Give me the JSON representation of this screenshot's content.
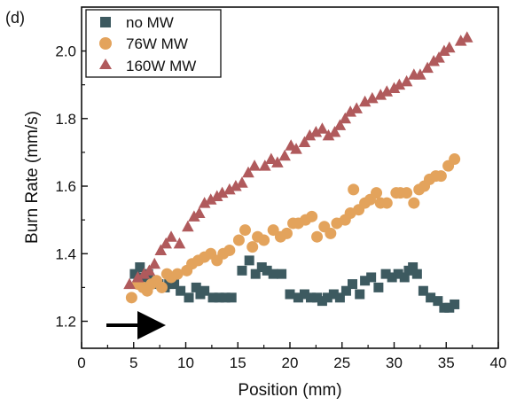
{
  "chart_data": {
    "type": "scatter",
    "panel_label": "(d)",
    "xlabel": "Position (mm)",
    "ylabel": "Burn Rate (mm/s)",
    "xlim": [
      0,
      40
    ],
    "ylim": [
      1.12,
      2.13
    ],
    "x_ticks": [
      0,
      5,
      10,
      15,
      20,
      25,
      30,
      35,
      40
    ],
    "x_tick_labels": [
      "0",
      "5",
      "10",
      "15",
      "20",
      "25",
      "30",
      "35",
      "40"
    ],
    "y_ticks": [
      1.2,
      1.4,
      1.6,
      1.8,
      2.0
    ],
    "y_tick_labels": [
      "1.2",
      "1.4",
      "1.6",
      "1.8",
      "2.0"
    ],
    "legend_position": "top-left",
    "annotation": "arrow pointing right (flame propagation direction)",
    "series": [
      {
        "name": "no MW",
        "marker": "square",
        "color": "#3d5a60",
        "points": [
          [
            5.1,
            1.34
          ],
          [
            5.6,
            1.36
          ],
          [
            6.0,
            1.33
          ],
          [
            6.4,
            1.34
          ],
          [
            6.9,
            1.32
          ],
          [
            7.4,
            1.31
          ],
          [
            8.0,
            1.3
          ],
          [
            8.4,
            1.31
          ],
          [
            8.9,
            1.31
          ],
          [
            9.5,
            1.29
          ],
          [
            10.3,
            1.27
          ],
          [
            11.0,
            1.3
          ],
          [
            11.4,
            1.28
          ],
          [
            11.8,
            1.29
          ],
          [
            12.6,
            1.27
          ],
          [
            13.2,
            1.27
          ],
          [
            13.8,
            1.27
          ],
          [
            14.4,
            1.27
          ],
          [
            15.4,
            1.35
          ],
          [
            16.1,
            1.38
          ],
          [
            16.7,
            1.34
          ],
          [
            17.3,
            1.36
          ],
          [
            17.8,
            1.35
          ],
          [
            18.4,
            1.34
          ],
          [
            19.2,
            1.34
          ],
          [
            20.0,
            1.28
          ],
          [
            20.8,
            1.27
          ],
          [
            21.4,
            1.28
          ],
          [
            22.0,
            1.27
          ],
          [
            22.6,
            1.27
          ],
          [
            23.1,
            1.26
          ],
          [
            23.6,
            1.27
          ],
          [
            24.2,
            1.28
          ],
          [
            24.8,
            1.27
          ],
          [
            25.4,
            1.29
          ],
          [
            26.0,
            1.31
          ],
          [
            26.7,
            1.28
          ],
          [
            27.2,
            1.32
          ],
          [
            27.8,
            1.33
          ],
          [
            28.5,
            1.3
          ],
          [
            29.2,
            1.34
          ],
          [
            29.8,
            1.33
          ],
          [
            30.4,
            1.34
          ],
          [
            31.0,
            1.33
          ],
          [
            31.4,
            1.35
          ],
          [
            31.8,
            1.36
          ],
          [
            32.2,
            1.34
          ],
          [
            32.8,
            1.29
          ],
          [
            33.5,
            1.27
          ],
          [
            34.2,
            1.26
          ],
          [
            34.8,
            1.24
          ],
          [
            35.3,
            1.24
          ],
          [
            35.8,
            1.25
          ]
        ]
      },
      {
        "name": "76W MW",
        "marker": "circle",
        "color": "#e3a35c",
        "points": [
          [
            4.8,
            1.27
          ],
          [
            5.4,
            1.31
          ],
          [
            5.9,
            1.3
          ],
          [
            6.3,
            1.29
          ],
          [
            6.7,
            1.31
          ],
          [
            7.2,
            1.32
          ],
          [
            7.7,
            1.3
          ],
          [
            8.2,
            1.34
          ],
          [
            8.6,
            1.33
          ],
          [
            9.2,
            1.34
          ],
          [
            10.1,
            1.35
          ],
          [
            10.6,
            1.37
          ],
          [
            11.2,
            1.38
          ],
          [
            11.8,
            1.39
          ],
          [
            12.4,
            1.4
          ],
          [
            13.0,
            1.38
          ],
          [
            13.6,
            1.4
          ],
          [
            14.2,
            1.41
          ],
          [
            15.1,
            1.44
          ],
          [
            15.7,
            1.47
          ],
          [
            16.4,
            1.42
          ],
          [
            16.9,
            1.45
          ],
          [
            17.5,
            1.44
          ],
          [
            18.4,
            1.47
          ],
          [
            19.1,
            1.45
          ],
          [
            19.7,
            1.46
          ],
          [
            20.3,
            1.49
          ],
          [
            20.8,
            1.49
          ],
          [
            21.5,
            1.5
          ],
          [
            22.1,
            1.51
          ],
          [
            22.6,
            1.45
          ],
          [
            23.3,
            1.48
          ],
          [
            23.9,
            1.46
          ],
          [
            24.5,
            1.49
          ],
          [
            25.3,
            1.5
          ],
          [
            25.8,
            1.52
          ],
          [
            26.1,
            1.59
          ],
          [
            26.6,
            1.53
          ],
          [
            27.2,
            1.55
          ],
          [
            27.7,
            1.56
          ],
          [
            28.3,
            1.58
          ],
          [
            28.7,
            1.55
          ],
          [
            29.3,
            1.55
          ],
          [
            30.2,
            1.58
          ],
          [
            30.6,
            1.58
          ],
          [
            31.2,
            1.58
          ],
          [
            31.9,
            1.55
          ],
          [
            32.4,
            1.59
          ],
          [
            32.9,
            1.6
          ],
          [
            33.4,
            1.62
          ],
          [
            34.0,
            1.63
          ],
          [
            34.5,
            1.63
          ],
          [
            35.2,
            1.66
          ],
          [
            35.8,
            1.68
          ]
        ]
      },
      {
        "name": "160W MW",
        "marker": "triangle",
        "color": "#b05a5c",
        "points": [
          [
            4.6,
            1.31
          ],
          [
            5.4,
            1.33
          ],
          [
            6.0,
            1.34
          ],
          [
            6.5,
            1.35
          ],
          [
            7.0,
            1.37
          ],
          [
            7.6,
            1.41
          ],
          [
            8.1,
            1.43
          ],
          [
            8.6,
            1.45
          ],
          [
            9.4,
            1.43
          ],
          [
            10.2,
            1.48
          ],
          [
            10.8,
            1.51
          ],
          [
            11.3,
            1.52
          ],
          [
            11.8,
            1.55
          ],
          [
            12.4,
            1.56
          ],
          [
            13.0,
            1.57
          ],
          [
            13.5,
            1.58
          ],
          [
            14.2,
            1.59
          ],
          [
            14.8,
            1.6
          ],
          [
            15.4,
            1.61
          ],
          [
            16.0,
            1.64
          ],
          [
            16.6,
            1.66
          ],
          [
            17.6,
            1.66
          ],
          [
            18.2,
            1.68
          ],
          [
            18.8,
            1.67
          ],
          [
            19.5,
            1.69
          ],
          [
            20.1,
            1.72
          ],
          [
            20.6,
            1.71
          ],
          [
            21.4,
            1.73
          ],
          [
            21.9,
            1.75
          ],
          [
            22.5,
            1.76
          ],
          [
            23.1,
            1.77
          ],
          [
            23.7,
            1.75
          ],
          [
            24.3,
            1.76
          ],
          [
            24.8,
            1.78
          ],
          [
            25.3,
            1.8
          ],
          [
            25.8,
            1.82
          ],
          [
            26.4,
            1.83
          ],
          [
            27.2,
            1.85
          ],
          [
            27.9,
            1.86
          ],
          [
            28.7,
            1.87
          ],
          [
            29.3,
            1.88
          ],
          [
            30.0,
            1.89
          ],
          [
            30.5,
            1.9
          ],
          [
            31.2,
            1.91
          ],
          [
            31.9,
            1.93
          ],
          [
            32.5,
            1.93
          ],
          [
            33.2,
            1.95
          ],
          [
            33.8,
            1.97
          ],
          [
            34.3,
            1.98
          ],
          [
            34.8,
            2.0
          ],
          [
            35.3,
            2.01
          ],
          [
            36.4,
            2.03
          ],
          [
            37.0,
            2.04
          ]
        ]
      }
    ]
  }
}
